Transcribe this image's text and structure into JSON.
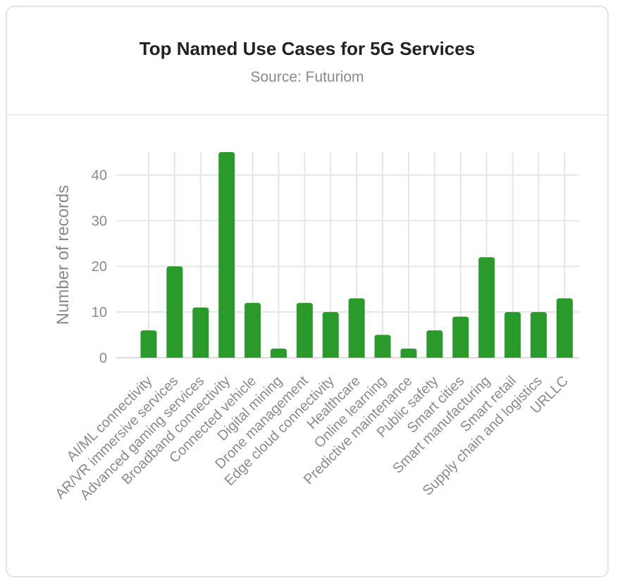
{
  "header": {
    "title": "Top Named Use Cases for 5G Services",
    "subtitle": "Source: Futuriom"
  },
  "chart_data": {
    "type": "bar",
    "title": "Top Named Use Cases for 5G Services",
    "subtitle": "Source: Futuriom",
    "xlabel": "",
    "ylabel": "Number of records",
    "ylim": [
      0,
      45
    ],
    "yticks": [
      0,
      10,
      20,
      30,
      40
    ],
    "grid": true,
    "bar_color": "#2a9a2a",
    "categories": [
      "AI/ML connectivity",
      "AR/VR immersive services",
      "Advanced gaming services",
      "Broadband connectivity",
      "Connected vehicle",
      "Digital mining",
      "Drone management",
      "Edge cloud connectivity",
      "Healthcare",
      "Online learning",
      "Predictive maintenance",
      "Public safety",
      "Smart cities",
      "Smart manufacturing",
      "Smart retail",
      "Supply chain and logistics",
      "URLLC"
    ],
    "values": [
      6,
      20,
      11,
      45,
      12,
      2,
      12,
      10,
      13,
      5,
      2,
      6,
      9,
      22,
      10,
      10,
      13
    ]
  }
}
